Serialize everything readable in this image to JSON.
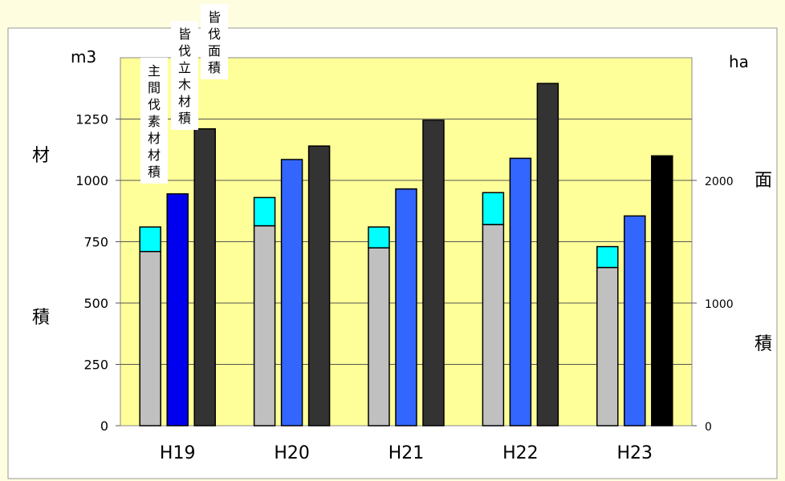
{
  "chart_data": {
    "type": "bar",
    "categories": [
      "H19",
      "H20",
      "H21",
      "H22",
      "H23"
    ],
    "y_left": {
      "unit": "m3",
      "label": [
        "材",
        "積"
      ],
      "ylim": [
        0,
        1500
      ],
      "ticks": [
        "0",
        "250",
        "500",
        "750",
        "1000",
        "1250"
      ]
    },
    "y_right": {
      "unit": "ha",
      "label": [
        "面",
        "積"
      ],
      "ylim": [
        0,
        3000
      ],
      "ticks": [
        "0",
        "1000",
        "2000"
      ]
    },
    "series": [
      {
        "name": "主間伐素材材積",
        "axis": "left",
        "stacked": true,
        "segments": [
          {
            "values": [
              710,
              815,
              725,
              820,
              645
            ],
            "color": "#c0c0c0"
          },
          {
            "values": [
              100,
              115,
              85,
              130,
              85
            ],
            "color": "#00ffff"
          }
        ]
      },
      {
        "name": "皆伐立木材積",
        "axis": "left",
        "values": [
          945,
          1085,
          965,
          1090,
          855
        ],
        "colors": [
          "#0000ee",
          "#3366ff",
          "#3366ff",
          "#3366ff",
          "#3366ff"
        ]
      },
      {
        "name": "皆伐面積",
        "axis": "right",
        "values": [
          2420,
          2280,
          2490,
          2790,
          2200
        ],
        "colors": [
          "#333333",
          "#333333",
          "#333333",
          "#333333",
          "#000000"
        ]
      }
    ],
    "legend_labels": [
      "主間伐素材材積",
      "皆伐立木材積",
      "皆伐面積"
    ],
    "grid": true,
    "plot_background": "#ffff99",
    "page_background": "#fffde0"
  }
}
